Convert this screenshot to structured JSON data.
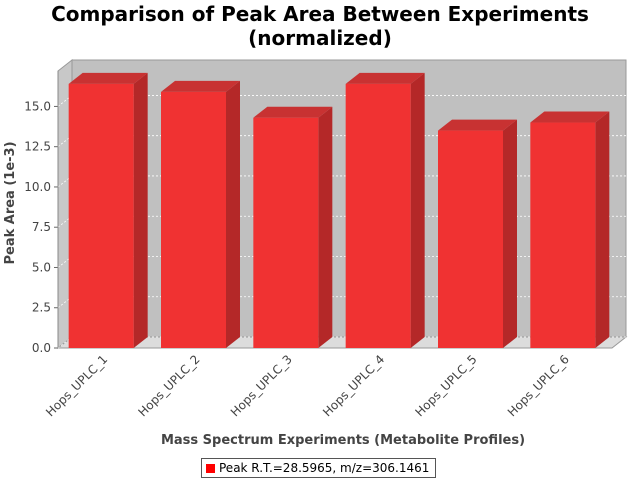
{
  "chart_data": {
    "type": "bar",
    "title": [
      "Comparison of Peak Area Between Experiments",
      "(normalized)"
    ],
    "xlabel": "Mass Spectrum Experiments (Metabolite Profiles)",
    "ylabel": "Peak Area (1e-3)",
    "categories": [
      "Hops_UPLC_1",
      "Hops_UPLC_2",
      "Hops_UPLC_3",
      "Hops_UPLC_4",
      "Hops_UPLC_5",
      "Hops_UPLC_6"
    ],
    "series": [
      {
        "name": "Peak R.T.=28.5965, m/z=306.1461",
        "values": [
          16.4,
          15.9,
          14.3,
          16.4,
          13.5,
          14.0
        ],
        "color": "#ff0000"
      }
    ],
    "ylim": [
      0,
      17.2
    ],
    "yticks": [
      "0.0",
      "2.5",
      "5.0",
      "7.5",
      "10.0",
      "12.5",
      "15.0"
    ],
    "grid": true,
    "legend_position": "bottom",
    "plot_background": "#c0c0c0",
    "style": "3d"
  }
}
